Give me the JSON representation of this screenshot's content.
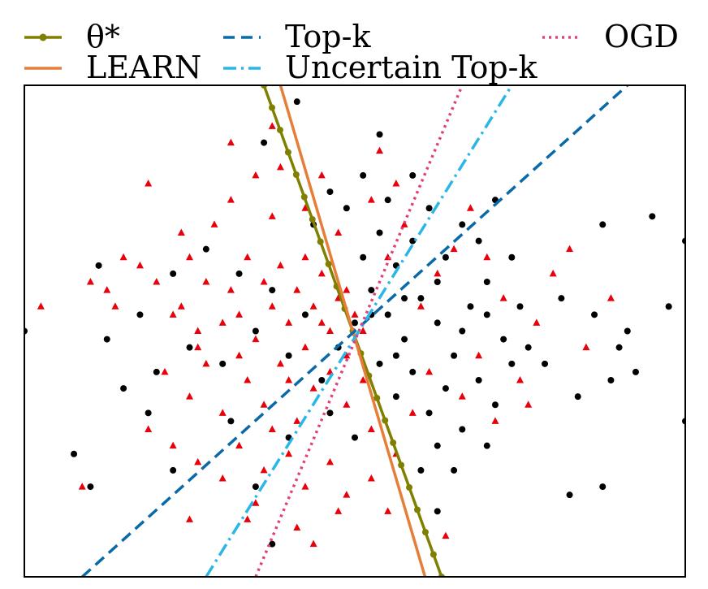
{
  "chart_data": {
    "type": "scatter",
    "title": "",
    "xlabel": "",
    "ylabel": "",
    "xlim": [
      -4.0,
      4.0
    ],
    "ylim": [
      -3.0,
      3.0
    ],
    "grid": false,
    "ticks_shown": false,
    "legend_placement": "top, outside axes, 3 columns",
    "scatter_series": [
      {
        "marker": "triangle",
        "color": "#e8000b",
        "points": [
          [
            -3.0,
            0.5
          ],
          [
            -3.8,
            0.3
          ],
          [
            -2.5,
            1.8
          ],
          [
            -2.8,
            0.9
          ],
          [
            -3.2,
            0.6
          ],
          [
            -2.6,
            0.8
          ],
          [
            -2.9,
            0.3
          ],
          [
            -2.4,
            0.6
          ],
          [
            -2.2,
            0.2
          ],
          [
            -2.0,
            0.9
          ],
          [
            -2.1,
            0.3
          ],
          [
            -1.8,
            0.6
          ],
          [
            -1.6,
            0.1
          ],
          [
            -1.9,
            -0.2
          ],
          [
            -1.5,
            0.5
          ],
          [
            -1.3,
            0.9
          ],
          [
            -1.4,
            0.2
          ],
          [
            -1.2,
            -0.1
          ],
          [
            -1.1,
            0.6
          ],
          [
            -1.0,
            0.3
          ],
          [
            -0.9,
            0.8
          ],
          [
            -0.8,
            0.1
          ],
          [
            -0.7,
            0.5
          ],
          [
            -0.6,
            -0.2
          ],
          [
            -0.5,
            0.3
          ],
          [
            -0.4,
            0.7
          ],
          [
            -0.3,
            0.0
          ],
          [
            -0.2,
            0.4
          ],
          [
            -0.1,
            -0.3
          ],
          [
            0.0,
            0.2
          ],
          [
            -1.7,
            1.3
          ],
          [
            -1.5,
            1.6
          ],
          [
            -1.2,
            1.9
          ],
          [
            -1.0,
            1.4
          ],
          [
            -0.9,
            2.0
          ],
          [
            -0.6,
            1.5
          ],
          [
            -0.4,
            1.9
          ],
          [
            -0.2,
            1.2
          ],
          [
            -2.3,
            -0.5
          ],
          [
            -2.0,
            -0.8
          ],
          [
            -1.8,
            -0.4
          ],
          [
            -1.6,
            -1.0
          ],
          [
            -1.3,
            -0.6
          ],
          [
            -1.1,
            -0.9
          ],
          [
            -0.9,
            -0.4
          ],
          [
            -0.7,
            -1.1
          ],
          [
            -0.5,
            -0.7
          ],
          [
            -0.3,
            -0.5
          ],
          [
            -0.1,
            -0.9
          ],
          [
            0.1,
            -0.6
          ],
          [
            0.2,
            -1.2
          ],
          [
            -2.5,
            -1.2
          ],
          [
            -2.2,
            -1.4
          ],
          [
            -1.9,
            -1.6
          ],
          [
            -1.6,
            -1.8
          ],
          [
            -1.4,
            -1.4
          ],
          [
            -1.1,
            -1.7
          ],
          [
            -0.8,
            -1.5
          ],
          [
            -0.6,
            -1.9
          ],
          [
            -0.3,
            -1.6
          ],
          [
            -0.1,
            -2.0
          ],
          [
            0.2,
            -1.8
          ],
          [
            0.4,
            -2.2
          ],
          [
            -2.0,
            -2.3
          ],
          [
            -1.2,
            -2.1
          ],
          [
            -0.7,
            -2.4
          ],
          [
            -0.2,
            -2.2
          ],
          [
            0.5,
            -1.5
          ],
          [
            0.7,
            -1.0
          ],
          [
            0.9,
            -0.5
          ],
          [
            0.8,
            0.3
          ],
          [
            1.0,
            0.7
          ],
          [
            1.2,
            1.0
          ],
          [
            0.6,
            1.3
          ],
          [
            0.4,
            0.9
          ],
          [
            0.2,
            1.6
          ],
          [
            0.5,
            1.8
          ],
          [
            1.4,
            1.5
          ],
          [
            1.6,
            0.9
          ],
          [
            1.8,
            0.4
          ],
          [
            1.5,
            -0.3
          ],
          [
            1.3,
            -0.8
          ],
          [
            1.7,
            -1.1
          ],
          [
            2.0,
            -0.6
          ],
          [
            2.2,
            0.1
          ],
          [
            2.4,
            0.7
          ],
          [
            2.6,
            1.0
          ],
          [
            2.8,
            -0.2
          ],
          [
            2.1,
            -0.9
          ],
          [
            3.1,
            0.4
          ],
          [
            -3.3,
            -1.9
          ],
          [
            -2.1,
            1.2
          ],
          [
            -1.5,
            2.3
          ],
          [
            -1.0,
            2.5
          ],
          [
            0.3,
            2.2
          ],
          [
            -0.5,
            -2.6
          ],
          [
            1.1,
            -2.5
          ],
          [
            -1.3,
            -2.3
          ],
          [
            -1.9,
            0.0
          ],
          [
            -1.4,
            -0.3
          ],
          [
            -0.8,
            -0.6
          ],
          [
            -0.4,
            0.1
          ],
          [
            -0.1,
            0.5
          ],
          [
            0.1,
            0.0
          ],
          [
            -0.6,
            0.9
          ],
          [
            -1.0,
            -1.2
          ]
        ]
      },
      {
        "marker": "circle",
        "color": "#000000",
        "points": [
          [
            0.0,
            0.1
          ],
          [
            0.2,
            0.5
          ],
          [
            0.4,
            0.2
          ],
          [
            0.6,
            -0.1
          ],
          [
            0.8,
            0.4
          ],
          [
            1.0,
            0.1
          ],
          [
            1.2,
            -0.3
          ],
          [
            1.4,
            0.3
          ],
          [
            1.6,
            0.6
          ],
          [
            1.8,
            -0.1
          ],
          [
            2.0,
            0.3
          ],
          [
            0.3,
            -0.4
          ],
          [
            0.5,
            -0.8
          ],
          [
            0.7,
            -0.5
          ],
          [
            0.9,
            -1.0
          ],
          [
            1.1,
            -0.7
          ],
          [
            1.3,
            -1.2
          ],
          [
            1.5,
            -0.6
          ],
          [
            1.7,
            -0.9
          ],
          [
            1.9,
            -0.4
          ],
          [
            2.1,
            -0.2
          ],
          [
            0.1,
            0.9
          ],
          [
            0.3,
            1.2
          ],
          [
            0.5,
            0.8
          ],
          [
            0.7,
            1.1
          ],
          [
            0.9,
            1.5
          ],
          [
            1.1,
            0.9
          ],
          [
            1.3,
            1.3
          ],
          [
            1.5,
            1.1
          ],
          [
            1.7,
            1.6
          ],
          [
            1.9,
            0.9
          ],
          [
            -0.5,
            1.3
          ],
          [
            -0.3,
            1.7
          ],
          [
            -0.1,
            1.5
          ],
          [
            0.1,
            1.9
          ],
          [
            0.3,
            2.4
          ],
          [
            -0.7,
            2.8
          ],
          [
            -1.1,
            2.3
          ],
          [
            -0.2,
            -0.2
          ],
          [
            -0.4,
            -0.6
          ],
          [
            -0.6,
            0.2
          ],
          [
            -0.8,
            -0.3
          ],
          [
            -1.0,
            0.5
          ],
          [
            -1.2,
            0.0
          ],
          [
            -1.4,
            0.7
          ],
          [
            -1.6,
            -0.4
          ],
          [
            -1.8,
            1.0
          ],
          [
            -2.0,
            -0.2
          ],
          [
            -2.2,
            0.7
          ],
          [
            -2.4,
            -0.5
          ],
          [
            -2.6,
            0.2
          ],
          [
            -2.8,
            -0.7
          ],
          [
            -3.1,
            0.8
          ],
          [
            -3.0,
            -0.1
          ],
          [
            -2.5,
            -1.0
          ],
          [
            -1.2,
            -1.9
          ],
          [
            -1.5,
            -1.1
          ],
          [
            -0.8,
            -1.3
          ],
          [
            -0.3,
            -1.0
          ],
          [
            0.0,
            -1.3
          ],
          [
            -1.0,
            -2.6
          ],
          [
            -2.2,
            -1.7
          ],
          [
            -3.2,
            -1.9
          ],
          [
            -3.4,
            -1.5
          ],
          [
            -4.0,
            0.0
          ],
          [
            2.3,
            -0.4
          ],
          [
            2.5,
            0.4
          ],
          [
            2.7,
            -0.8
          ],
          [
            2.9,
            0.2
          ],
          [
            3.1,
            -0.6
          ],
          [
            3.3,
            0.0
          ],
          [
            3.0,
            1.3
          ],
          [
            3.2,
            -0.2
          ],
          [
            3.4,
            -0.5
          ],
          [
            3.6,
            1.4
          ],
          [
            3.8,
            0.3
          ],
          [
            4.0,
            1.1
          ],
          [
            3.0,
            -1.9
          ],
          [
            4.0,
            -1.1
          ],
          [
            2.6,
            -2.0
          ],
          [
            1.6,
            -1.4
          ],
          [
            1.0,
            -1.4
          ],
          [
            1.2,
            -1.7
          ],
          [
            0.8,
            -1.7
          ],
          [
            1.0,
            -2.2
          ],
          [
            0.4,
            1.6
          ],
          [
            0.7,
            1.9
          ],
          [
            0.2,
            0.2
          ],
          [
            0.6,
            0.4
          ],
          [
            1.0,
            0.6
          ],
          [
            1.3,
            0.0
          ],
          [
            1.6,
            0.2
          ],
          [
            0.5,
            -0.3
          ]
        ]
      }
    ],
    "line_series": [
      {
        "label": "θ*",
        "style": "solid-dots",
        "color": "#808000",
        "points": [
          [
            -1.1,
            3.0
          ],
          [
            1.05,
            -3.0
          ]
        ]
      },
      {
        "label": "LEARN",
        "style": "solid",
        "color": "#e67e3a",
        "points": [
          [
            -0.9,
            3.0
          ],
          [
            0.85,
            -3.0
          ]
        ]
      },
      {
        "label": "Top-k",
        "style": "dashed",
        "color": "#0a6aa8",
        "points": [
          [
            -3.3,
            -3.0
          ],
          [
            3.3,
            3.0
          ]
        ]
      },
      {
        "label": "Uncertain Top-k",
        "style": "dashdot",
        "color": "#2bb6e8",
        "points": [
          [
            -1.8,
            -3.0
          ],
          [
            1.9,
            3.0
          ]
        ]
      },
      {
        "label": "OGD",
        "style": "dotted",
        "color": "#e0407a",
        "points": [
          [
            -1.2,
            -3.0
          ],
          [
            1.3,
            3.0
          ]
        ]
      }
    ],
    "legend": [
      {
        "label": "θ*",
        "color": "#808000",
        "style": "solid-dots"
      },
      {
        "label": "LEARN",
        "color": "#e67e3a",
        "style": "solid"
      },
      {
        "label": "Top-k",
        "color": "#0a6aa8",
        "style": "dashed"
      },
      {
        "label": "Uncertain Top-k",
        "color": "#2bb6e8",
        "style": "dashdot"
      },
      {
        "label": "OGD",
        "color": "#e0407a",
        "style": "dotted"
      }
    ]
  }
}
